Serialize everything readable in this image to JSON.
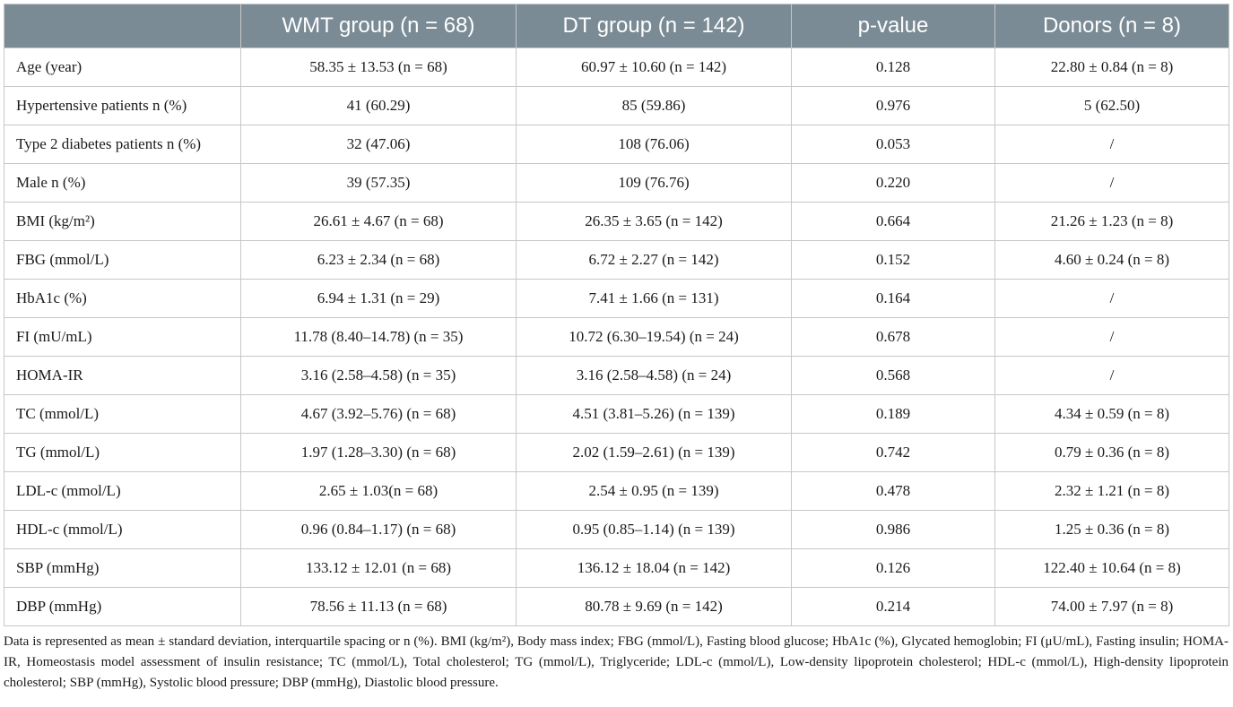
{
  "table": {
    "columns": [
      "",
      "WMT group (n = 68)",
      "DT group (n = 142)",
      "p-value",
      "Donors (n = 8)"
    ],
    "rows": [
      [
        "Age (year)",
        "58.35 ± 13.53 (n = 68)",
        "60.97 ± 10.60 (n = 142)",
        "0.128",
        "22.80 ± 0.84 (n = 8)"
      ],
      [
        "Hypertensive patients n (%)",
        "41 (60.29)",
        "85 (59.86)",
        "0.976",
        "5 (62.50)"
      ],
      [
        "Type 2 diabetes patients n (%)",
        "32 (47.06)",
        "108 (76.06)",
        "0.053",
        "/"
      ],
      [
        "Male n (%)",
        "39 (57.35)",
        "109 (76.76)",
        "0.220",
        "/"
      ],
      [
        "BMI (kg/m²)",
        "26.61 ± 4.67 (n = 68)",
        "26.35 ± 3.65 (n = 142)",
        "0.664",
        "21.26 ± 1.23 (n = 8)"
      ],
      [
        "FBG (mmol/L)",
        "6.23 ± 2.34 (n = 68)",
        "6.72 ± 2.27 (n = 142)",
        "0.152",
        "4.60 ± 0.24 (n = 8)"
      ],
      [
        "HbA1c (%)",
        "6.94 ± 1.31 (n = 29)",
        "7.41 ± 1.66 (n = 131)",
        "0.164",
        "/"
      ],
      [
        "FI (mU/mL)",
        "11.78 (8.40–14.78) (n = 35)",
        "10.72 (6.30–19.54) (n = 24)",
        "0.678",
        "/"
      ],
      [
        "HOMA-IR",
        "3.16 (2.58–4.58) (n = 35)",
        "3.16 (2.58–4.58) (n = 24)",
        "0.568",
        "/"
      ],
      [
        "TC (mmol/L)",
        "4.67 (3.92–5.76) (n = 68)",
        "4.51 (3.81–5.26) (n = 139)",
        "0.189",
        "4.34 ± 0.59 (n = 8)"
      ],
      [
        "TG (mmol/L)",
        "1.97 (1.28–3.30) (n = 68)",
        "2.02 (1.59–2.61) (n = 139)",
        "0.742",
        "0.79 ± 0.36 (n = 8)"
      ],
      [
        "LDL-c (mmol/L)",
        "2.65 ± 1.03(n = 68)",
        "2.54 ± 0.95 (n = 139)",
        "0.478",
        "2.32 ± 1.21 (n = 8)"
      ],
      [
        "HDL-c (mmol/L)",
        "0.96 (0.84–1.17) (n = 68)",
        "0.95 (0.85–1.14) (n = 139)",
        "0.986",
        "1.25 ± 0.36 (n = 8)"
      ],
      [
        "SBP (mmHg)",
        "133.12 ± 12.01 (n = 68)",
        "136.12 ± 18.04 (n = 142)",
        "0.126",
        "122.40 ± 10.64 (n = 8)"
      ],
      [
        "DBP (mmHg)",
        "78.56 ± 11.13 (n = 68)",
        "80.78 ± 9.69 (n = 142)",
        "0.214",
        "74.00 ± 7.97 (n = 8)"
      ]
    ]
  },
  "footnote": "Data is represented as mean ± standard deviation, interquartile spacing or n (%). BMI (kg/m²), Body mass index; FBG (mmol/L), Fasting blood glucose; HbA1c (%), Glycated hemoglobin; FI (μU/mL), Fasting insulin; HOMA-IR, Homeostasis model assessment of insulin resistance; TC (mmol/L), Total cholesterol; TG (mmol/L), Triglyceride; LDL-c (mmol/L), Low-density lipoprotein cholesterol; HDL-c (mmol/L), High-density lipoprotein cholesterol; SBP (mmHg), Systolic blood pressure; DBP (mmHg), Diastolic blood pressure."
}
